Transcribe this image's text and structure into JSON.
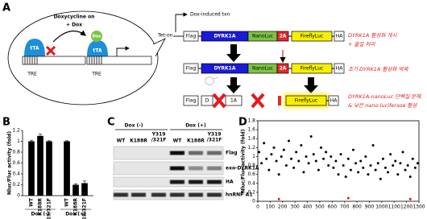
{
  "panel_labels": [
    "A",
    "B",
    "C",
    "D"
  ],
  "panel_a": {
    "dox_on": "Doxycycline on",
    "plus_dox": "+ Dox",
    "tta": [
      "tTA",
      "tTA"
    ],
    "dox": "Dox",
    "tre": [
      "TRE",
      "TRE"
    ],
    "tet_on": "Tet-on",
    "induced": "Dox-induced txn",
    "construct": [
      "Flag",
      "DYRK1A",
      "NanoLuc",
      "2A",
      "FireflyLuc",
      "HA"
    ],
    "degraded": [
      "Flag",
      "D",
      "1A",
      "FireflyLuc",
      "HA"
    ],
    "notes": [
      [
        "DYRK1A 활성화 개시",
        "+ 물질 처리"
      ],
      [
        "조기 DYRK1A 활성화 억제"
      ],
      [
        "DYRK1A-nanoLuc 단백질 분해",
        "& 낮은 nano-luciferase 활성"
      ]
    ]
  },
  "panel_c": {
    "groups": [
      "Dox (-)",
      "Dox (+)"
    ],
    "lanes": [
      [
        "WT"
      ],
      [
        "K188R"
      ],
      [
        "Y319",
        "/321F"
      ],
      [
        "WT"
      ],
      [
        "K188R"
      ],
      [
        "Y319",
        "/321F"
      ]
    ],
    "rows": [
      "Flag",
      "exo-DYRK1A",
      "HA",
      "hnRNP A1"
    ]
  },
  "chart_data": [
    {
      "type": "bar",
      "y_label": "Nluc/Fluc activity (fold)",
      "categories": [
        "WT",
        "K188R",
        "Y319/321F",
        "WT",
        "K188R",
        "Y319/321F"
      ],
      "groups": [
        "Dox (-)",
        "Dox (+)"
      ],
      "values": [
        1.0,
        1.1,
        1.0,
        1.0,
        0.2,
        0.23
      ],
      "errors": [
        0.02,
        0.03,
        0.01,
        0.01,
        0.02,
        0.04
      ],
      "color": "#000000",
      "ylim": [
        0,
        1.2
      ],
      "yticks": [
        0,
        0.2,
        0.4,
        0.6,
        0.8,
        1,
        1.2
      ]
    },
    {
      "type": "scatter",
      "y_label": "Nluc/Fluc activity (fold)",
      "series": [
        {
          "color": "#000000",
          "x": [
            10,
            30,
            50,
            70,
            90,
            110,
            130,
            150,
            170,
            190,
            210,
            230,
            250,
            270,
            290,
            310,
            330,
            350,
            370,
            390,
            410,
            430,
            450,
            470,
            490,
            510,
            530,
            550,
            570,
            590,
            610,
            630,
            650,
            670,
            690,
            710,
            730,
            750,
            770,
            790,
            810,
            830,
            850,
            870,
            890,
            910,
            930,
            950,
            970,
            990,
            1010,
            1030,
            1050,
            1070,
            1090,
            1110,
            1130,
            1150,
            1170,
            1190,
            1210,
            1230,
            1250,
            1270,
            1290
          ],
          "values": [
            1.1,
            0.85,
            1.3,
            0.95,
            0.7,
            1.05,
            1.2,
            0.9,
            0.6,
            1.0,
            1.15,
            0.8,
            1.35,
            0.95,
            0.75,
            1.1,
            0.9,
            1.25,
            0.65,
            1.0,
            0.85,
            1.45,
            1.05,
            0.9,
            0.7,
            1.2,
            0.95,
            1.1,
            0.8,
            1.0,
            0.75,
            0.9,
            0.6,
            1.05,
            0.8,
            0.55,
            0.95,
            0.7,
            1.15,
            0.85,
            0.65,
            0.9,
            0.75,
            1.0,
            0.6,
            0.8,
            1.25,
            0.7,
            0.85,
            0.5,
            0.95,
            0.75,
            0.65,
            1.05,
            0.8,
            0.9,
            0.6,
            0.85,
            1.1,
            0.7,
            0.8,
            0.55,
            0.95,
            0.75,
            0.85
          ]
        },
        {
          "color": "#e41a1c",
          "x": [
            170,
            730,
            1230
          ],
          "values": [
            0.05,
            0.07,
            0.05
          ]
        }
      ],
      "xlim": [
        0,
        1300
      ],
      "ylim": [
        0,
        1.8
      ],
      "xticks": [
        0,
        100,
        200,
        300,
        400,
        500,
        600,
        700,
        800,
        900,
        1000,
        1100,
        1200,
        1300
      ],
      "yticks": [
        0,
        0.2,
        0.4,
        0.6,
        0.8,
        1,
        1.2,
        1.4,
        1.6,
        1.8
      ]
    }
  ]
}
